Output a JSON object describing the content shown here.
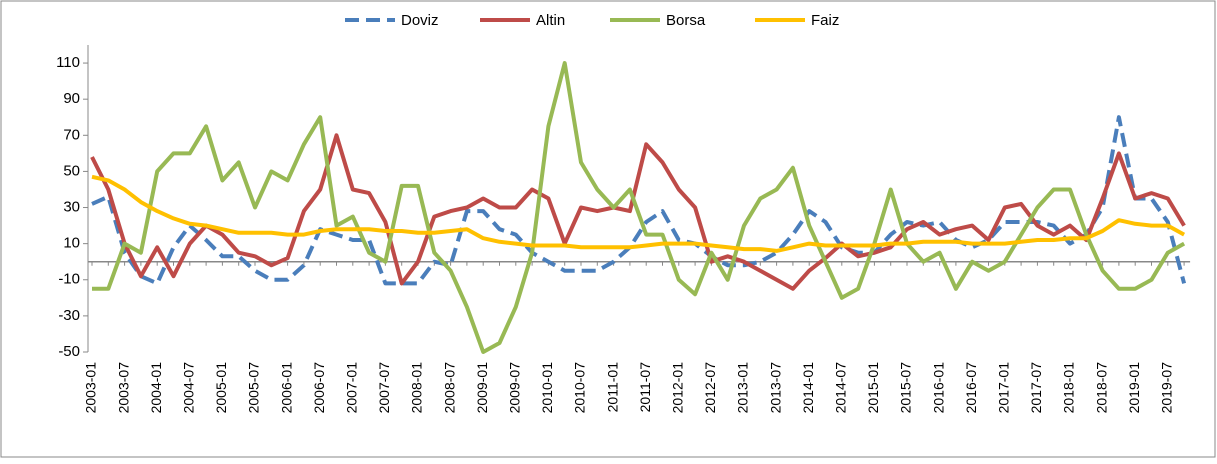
{
  "chart_data": {
    "type": "line",
    "categories": [
      "2003-01",
      null,
      "2003-07",
      null,
      "2004-01",
      null,
      "2004-07",
      null,
      "2005-01",
      null,
      "2005-07",
      null,
      "2006-01",
      null,
      "2006-07",
      null,
      "2007-01",
      null,
      "2007-07",
      null,
      "2008-01",
      null,
      "2008-07",
      null,
      "2009-01",
      null,
      "2009-07",
      null,
      "2010-01",
      null,
      "2010-07",
      null,
      "2011-01",
      null,
      "2011-07",
      null,
      "2012-01",
      null,
      "2012-07",
      null,
      "2013-01",
      null,
      "2013-07",
      null,
      "2014-01",
      null,
      "2014-07",
      null,
      "2015-01",
      null,
      "2015-07",
      null,
      "2016-01",
      null,
      "2016-07",
      null,
      "2017-01",
      null,
      "2017-07",
      null,
      "2018-01",
      null,
      "2018-07",
      null,
      "2019-01",
      null,
      "2019-07",
      null
    ],
    "series": [
      {
        "name": "Doviz",
        "color": "#4a7ebb",
        "dashed": true,
        "values": [
          32,
          36,
          5,
          -8,
          -12,
          8,
          20,
          12,
          3,
          3,
          -5,
          -10,
          -10,
          -2,
          18,
          15,
          12,
          12,
          -12,
          -12,
          -12,
          0,
          -2,
          28,
          28,
          18,
          15,
          5,
          0,
          -5,
          -5,
          -5,
          0,
          8,
          22,
          28,
          12,
          10,
          3,
          -2,
          -2,
          0,
          5,
          15,
          28,
          22,
          8,
          5,
          5,
          15,
          22,
          20,
          22,
          12,
          8,
          12,
          22,
          22,
          22,
          20,
          10,
          15,
          30,
          80,
          35,
          35,
          22,
          -12
        ]
      },
      {
        "name": "Altin",
        "color": "#be4b48",
        "values": [
          58,
          40,
          10,
          -8,
          8,
          -8,
          10,
          20,
          15,
          5,
          3,
          -2,
          2,
          28,
          40,
          70,
          40,
          38,
          22,
          -12,
          0,
          25,
          28,
          30,
          35,
          30,
          30,
          40,
          35,
          10,
          30,
          28,
          30,
          28,
          65,
          55,
          40,
          30,
          0,
          3,
          0,
          -5,
          -10,
          -15,
          -5,
          2,
          10,
          3,
          5,
          8,
          18,
          22,
          15,
          18,
          20,
          12,
          30,
          32,
          20,
          15,
          20,
          12,
          35,
          60,
          35,
          38,
          35,
          20
        ]
      },
      {
        "name": "Borsa",
        "color": "#98b954",
        "values": [
          -15,
          -15,
          10,
          5,
          50,
          60,
          60,
          75,
          45,
          55,
          30,
          50,
          45,
          65,
          80,
          20,
          25,
          5,
          0,
          42,
          42,
          5,
          -5,
          -25,
          -50,
          -45,
          -25,
          5,
          75,
          110,
          55,
          40,
          30,
          40,
          15,
          15,
          -10,
          -18,
          5,
          -10,
          20,
          35,
          40,
          52,
          20,
          0,
          -20,
          -15,
          10,
          40,
          10,
          0,
          5,
          -15,
          0,
          -5,
          0,
          15,
          30,
          40,
          40,
          15,
          -5,
          -15,
          -15,
          -10,
          5,
          10
        ]
      },
      {
        "name": "Faiz",
        "color": "#ffc000",
        "values": [
          47,
          45,
          40,
          33,
          28,
          24,
          21,
          20,
          18,
          16,
          16,
          16,
          15,
          15,
          17,
          18,
          18,
          18,
          17,
          17,
          16,
          16,
          17,
          18,
          13,
          11,
          10,
          9,
          9,
          9,
          8,
          8,
          8,
          8,
          9,
          10,
          10,
          10,
          9,
          8,
          7,
          7,
          6,
          8,
          10,
          9,
          9,
          9,
          9,
          10,
          10,
          11,
          11,
          11,
          10,
          10,
          10,
          11,
          12,
          12,
          13,
          13,
          17,
          23,
          21,
          20,
          20,
          15
        ]
      }
    ],
    "ylim": [
      -50,
      120
    ],
    "yticks": [
      -50,
      -30,
      -10,
      10,
      30,
      50,
      70,
      90,
      110
    ],
    "legend": "top"
  }
}
